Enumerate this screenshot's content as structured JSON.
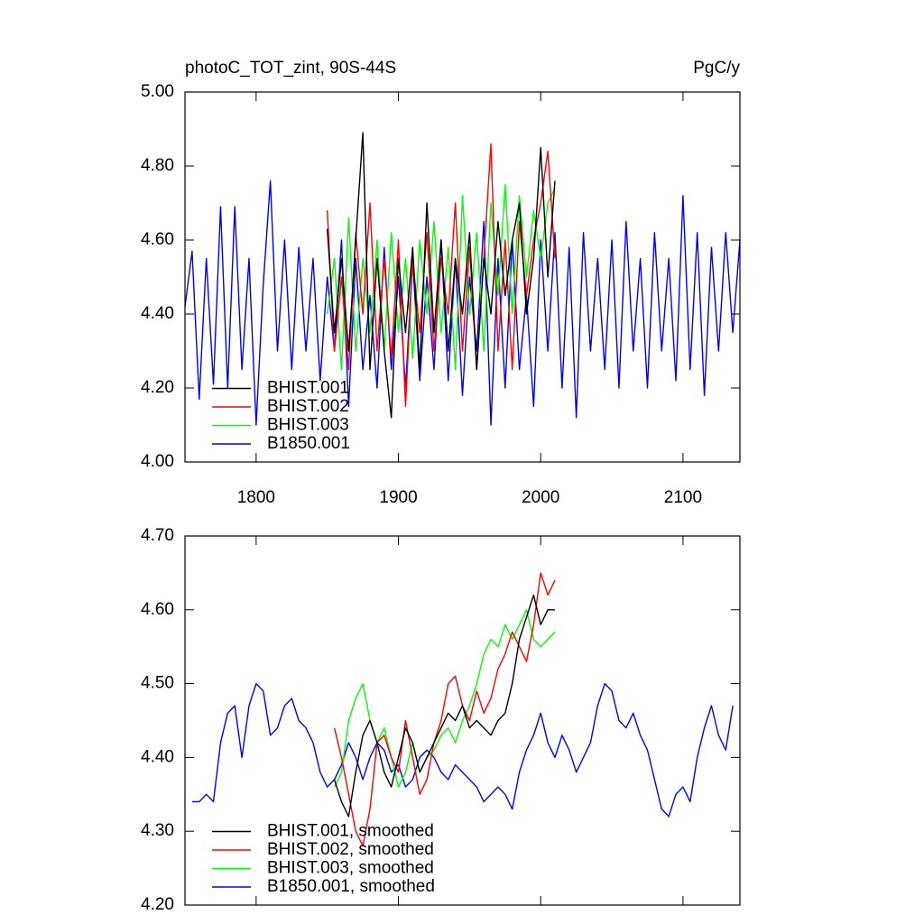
{
  "chart_data": [
    {
      "type": "line",
      "title": "photoC_TOT_zint, 90S-44S",
      "units": "PgC/y",
      "xlim": [
        1750,
        2140
      ],
      "xticks": [
        1800,
        1900,
        2000,
        2100
      ],
      "xticklabels": true,
      "ylim": [
        4.0,
        5.0
      ],
      "yticks": [
        {
          "value": 4.0,
          "label": "4.00"
        },
        {
          "value": 4.2,
          "label": "4.20"
        },
        {
          "value": 4.4,
          "label": "4.40"
        },
        {
          "value": 4.6,
          "label": "4.60"
        },
        {
          "value": 4.8,
          "label": "4.80"
        },
        {
          "value": 5.0,
          "label": "5.00"
        }
      ],
      "legend": "lower left",
      "series": [
        {
          "name": "B1850.001",
          "color": "#0000ff",
          "x": [
            1750,
            1755,
            1760,
            1765,
            1770,
            1775,
            1780,
            1785,
            1790,
            1795,
            1800,
            1805,
            1810,
            1815,
            1820,
            1825,
            1830,
            1835,
            1840,
            1845,
            1850,
            1855,
            1860,
            1865,
            1870,
            1875,
            1880,
            1885,
            1890,
            1895,
            1900,
            1905,
            1910,
            1915,
            1920,
            1925,
            1930,
            1935,
            1940,
            1945,
            1950,
            1955,
            1960,
            1965,
            1970,
            1975,
            1980,
            1985,
            1990,
            1995,
            2000,
            2005,
            2010,
            2015,
            2020,
            2025,
            2030,
            2035,
            2040,
            2045,
            2050,
            2055,
            2060,
            2065,
            2070,
            2075,
            2080,
            2085,
            2090,
            2095,
            2100,
            2105,
            2110,
            2115,
            2120,
            2125,
            2130,
            2135,
            2140
          ],
          "values": [
            4.42,
            4.57,
            4.17,
            4.55,
            4.21,
            4.69,
            4.2,
            4.69,
            4.25,
            4.55,
            4.1,
            4.48,
            4.76,
            4.3,
            4.6,
            4.25,
            4.58,
            4.3,
            4.55,
            4.22,
            4.5,
            4.3,
            4.6,
            4.15,
            4.55,
            4.25,
            4.45,
            4.2,
            4.58,
            4.25,
            4.5,
            4.2,
            4.55,
            4.22,
            4.5,
            4.25,
            4.6,
            4.22,
            4.55,
            4.18,
            4.5,
            4.3,
            4.65,
            4.1,
            4.55,
            4.2,
            4.6,
            4.25,
            4.45,
            4.15,
            4.6,
            4.3,
            4.62,
            4.2,
            4.58,
            4.12,
            4.62,
            4.3,
            4.55,
            4.25,
            4.6,
            4.2,
            4.65,
            4.3,
            4.55,
            4.2,
            4.62,
            4.3,
            4.55,
            4.22,
            4.72,
            4.25,
            4.62,
            4.18,
            4.58,
            4.3,
            4.62,
            4.35,
            4.6
          ]
        },
        {
          "name": "BHIST.003",
          "color": "#00ff00",
          "x": [
            1850,
            1855,
            1860,
            1865,
            1870,
            1875,
            1880,
            1885,
            1890,
            1895,
            1900,
            1905,
            1910,
            1915,
            1920,
            1925,
            1930,
            1935,
            1940,
            1945,
            1950,
            1955,
            1960,
            1965,
            1970,
            1975,
            1980,
            1985,
            1990,
            1995,
            2000,
            2005,
            2010
          ],
          "values": [
            4.4,
            4.55,
            4.25,
            4.66,
            4.3,
            4.55,
            4.35,
            4.6,
            4.3,
            4.62,
            4.35,
            4.55,
            4.28,
            4.6,
            4.4,
            4.65,
            4.35,
            4.58,
            4.25,
            4.72,
            4.4,
            4.62,
            4.3,
            4.7,
            4.45,
            4.75,
            4.4,
            4.72,
            4.5,
            4.68,
            4.55,
            4.7,
            4.74
          ]
        },
        {
          "name": "BHIST.002",
          "color": "#ff0000",
          "x": [
            1850,
            1855,
            1860,
            1865,
            1870,
            1875,
            1880,
            1885,
            1890,
            1895,
            1900,
            1905,
            1910,
            1915,
            1920,
            1925,
            1930,
            1935,
            1940,
            1945,
            1950,
            1955,
            1960,
            1965,
            1970,
            1975,
            1980,
            1985,
            1990,
            1995,
            2000,
            2005,
            2010
          ],
          "values": [
            4.68,
            4.3,
            4.5,
            4.25,
            4.62,
            4.4,
            4.7,
            4.3,
            4.55,
            4.28,
            4.6,
            4.15,
            4.55,
            4.35,
            4.62,
            4.3,
            4.55,
            4.4,
            4.7,
            4.3,
            4.58,
            4.25,
            4.55,
            4.86,
            4.3,
            4.6,
            4.25,
            4.65,
            4.45,
            4.6,
            4.7,
            4.84,
            4.55
          ]
        },
        {
          "name": "BHIST.001",
          "color": "#000000",
          "x": [
            1850,
            1855,
            1860,
            1865,
            1870,
            1875,
            1880,
            1885,
            1890,
            1895,
            1900,
            1905,
            1910,
            1915,
            1920,
            1925,
            1930,
            1935,
            1940,
            1945,
            1950,
            1955,
            1960,
            1965,
            1970,
            1975,
            1980,
            1985,
            1990,
            1995,
            2000,
            2005,
            2010
          ],
          "values": [
            4.63,
            4.35,
            4.55,
            4.3,
            4.6,
            4.89,
            4.25,
            4.55,
            4.3,
            4.12,
            4.55,
            4.35,
            4.58,
            4.25,
            4.7,
            4.35,
            4.6,
            4.3,
            4.55,
            4.4,
            4.62,
            4.25,
            4.55,
            4.4,
            4.65,
            4.45,
            4.6,
            4.7,
            4.4,
            4.55,
            4.85,
            4.5,
            4.76
          ]
        }
      ]
    },
    {
      "type": "line",
      "xlim": [
        1750,
        2140
      ],
      "xticks": [
        1800,
        1900,
        2000,
        2100
      ],
      "xticklabels": false,
      "ylim": [
        4.2,
        4.7
      ],
      "yticks": [
        {
          "value": 4.2,
          "label": "4.20"
        },
        {
          "value": 4.3,
          "label": "4.30"
        },
        {
          "value": 4.4,
          "label": "4.40"
        },
        {
          "value": 4.5,
          "label": "4.50"
        },
        {
          "value": 4.6,
          "label": "4.60"
        },
        {
          "value": 4.7,
          "label": "4.70"
        }
      ],
      "legend": "lower left",
      "series": [
        {
          "name": "B1850.001, smoothed",
          "color": "#0000ff",
          "x": [
            1755,
            1760,
            1765,
            1770,
            1775,
            1780,
            1785,
            1790,
            1795,
            1800,
            1805,
            1810,
            1815,
            1820,
            1825,
            1830,
            1835,
            1840,
            1845,
            1850,
            1855,
            1860,
            1865,
            1870,
            1875,
            1880,
            1885,
            1890,
            1895,
            1900,
            1905,
            1910,
            1915,
            1920,
            1925,
            1930,
            1935,
            1940,
            1945,
            1950,
            1955,
            1960,
            1965,
            1970,
            1975,
            1980,
            1985,
            1990,
            1995,
            2000,
            2005,
            2010,
            2015,
            2020,
            2025,
            2030,
            2035,
            2040,
            2045,
            2050,
            2055,
            2060,
            2065,
            2070,
            2075,
            2080,
            2085,
            2090,
            2095,
            2100,
            2105,
            2110,
            2115,
            2120,
            2125,
            2130,
            2135
          ],
          "values": [
            4.34,
            4.34,
            4.35,
            4.34,
            4.42,
            4.46,
            4.47,
            4.4,
            4.47,
            4.5,
            4.49,
            4.43,
            4.44,
            4.47,
            4.48,
            4.45,
            4.44,
            4.42,
            4.38,
            4.36,
            4.37,
            4.39,
            4.42,
            4.4,
            4.37,
            4.4,
            4.42,
            4.41,
            4.38,
            4.39,
            4.36,
            4.37,
            4.4,
            4.41,
            4.4,
            4.38,
            4.37,
            4.39,
            4.38,
            4.37,
            4.36,
            4.34,
            4.35,
            4.36,
            4.35,
            4.33,
            4.38,
            4.41,
            4.43,
            4.46,
            4.42,
            4.4,
            4.43,
            4.41,
            4.38,
            4.4,
            4.42,
            4.47,
            4.5,
            4.49,
            4.45,
            4.44,
            4.46,
            4.43,
            4.41,
            4.37,
            4.33,
            4.32,
            4.35,
            4.36,
            4.34,
            4.4,
            4.44,
            4.47,
            4.43,
            4.41,
            4.47
          ]
        },
        {
          "name": "BHIST.003, smoothed",
          "color": "#00ff00",
          "x": [
            1855,
            1860,
            1865,
            1870,
            1875,
            1880,
            1885,
            1890,
            1895,
            1900,
            1905,
            1910,
            1915,
            1920,
            1925,
            1930,
            1935,
            1940,
            1945,
            1950,
            1955,
            1960,
            1965,
            1970,
            1975,
            1980,
            1985,
            1990,
            1995,
            2000,
            2005,
            2010
          ],
          "values": [
            4.36,
            4.38,
            4.45,
            4.48,
            4.5,
            4.45,
            4.42,
            4.44,
            4.4,
            4.36,
            4.38,
            4.42,
            4.38,
            4.4,
            4.41,
            4.43,
            4.44,
            4.42,
            4.45,
            4.47,
            4.5,
            4.54,
            4.56,
            4.55,
            4.58,
            4.56,
            4.58,
            4.6,
            4.56,
            4.55,
            4.56,
            4.57
          ]
        },
        {
          "name": "BHIST.002, smoothed",
          "color": "#ff0000",
          "x": [
            1855,
            1860,
            1865,
            1870,
            1875,
            1880,
            1885,
            1890,
            1895,
            1900,
            1905,
            1910,
            1915,
            1920,
            1925,
            1930,
            1935,
            1940,
            1945,
            1950,
            1955,
            1960,
            1965,
            1970,
            1975,
            1980,
            1985,
            1990,
            1995,
            2000,
            2005,
            2010
          ],
          "values": [
            4.44,
            4.4,
            4.35,
            4.3,
            4.28,
            4.33,
            4.42,
            4.43,
            4.4,
            4.38,
            4.45,
            4.4,
            4.35,
            4.37,
            4.42,
            4.45,
            4.5,
            4.51,
            4.47,
            4.45,
            4.49,
            4.46,
            4.48,
            4.52,
            4.54,
            4.57,
            4.55,
            4.53,
            4.58,
            4.65,
            4.62,
            4.64
          ]
        },
        {
          "name": "BHIST.001, smoothed",
          "color": "#000000",
          "x": [
            1855,
            1860,
            1865,
            1870,
            1875,
            1880,
            1885,
            1890,
            1895,
            1900,
            1905,
            1910,
            1915,
            1920,
            1925,
            1930,
            1935,
            1940,
            1945,
            1950,
            1955,
            1960,
            1965,
            1970,
            1975,
            1980,
            1985,
            1990,
            1995,
            2000,
            2005,
            2010
          ],
          "values": [
            4.37,
            4.34,
            4.32,
            4.38,
            4.43,
            4.45,
            4.42,
            4.38,
            4.36,
            4.4,
            4.44,
            4.42,
            4.38,
            4.4,
            4.42,
            4.44,
            4.46,
            4.45,
            4.47,
            4.44,
            4.45,
            4.44,
            4.43,
            4.45,
            4.46,
            4.5,
            4.56,
            4.59,
            4.62,
            4.58,
            4.6,
            4.6
          ]
        }
      ]
    }
  ]
}
